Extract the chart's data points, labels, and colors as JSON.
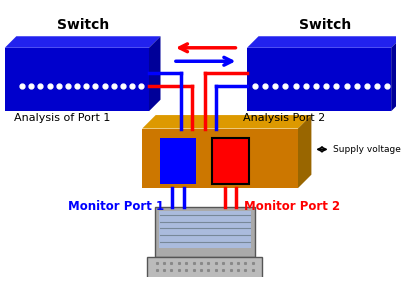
{
  "background_color": "#ffffff",
  "blue_color": "#0000ff",
  "red_color": "#ff0000",
  "switch_color": "#0000cc",
  "tap_color": "#cc7700",
  "tap_top_color": "#dd9900",
  "tap_dark_color": "#996600",
  "text_switch_left": "Switch",
  "text_switch_right": "Switch",
  "text_analysis_port1": "Analysis of Port 1",
  "text_analysis_port2": "Analysis Port 2",
  "text_monitor_port1": "Monitor Port 1",
  "text_monitor_port2": "Monitor Port 2",
  "text_supply": "Supply voltage"
}
